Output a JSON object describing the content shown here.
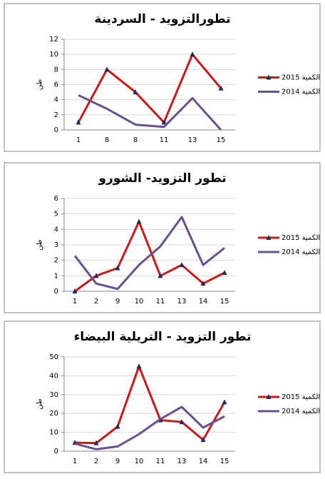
{
  "chart_data": [
    {
      "type": "line",
      "title": "تطورالتزويد - السردينة",
      "y_label": "طن",
      "categories": [
        "1",
        "8",
        "8",
        "11",
        "13",
        "15"
      ],
      "series": [
        {
          "name": "2015 الكمية",
          "color": "#cc1a1a",
          "marker": "triangle",
          "values": [
            1,
            8,
            5,
            1,
            10,
            5.5
          ]
        },
        {
          "name": "2014 الكمية",
          "color": "#6b5090",
          "values": [
            4.6,
            2.8,
            0.7,
            0.4,
            4.2,
            0
          ]
        }
      ],
      "ylim": [
        0,
        12
      ],
      "yticks": [
        0,
        2,
        4,
        6,
        8,
        10,
        12
      ]
    },
    {
      "type": "line",
      "title": "تطور التزويد- الشورو",
      "y_label": "طن",
      "categories": [
        "1",
        "2",
        "9",
        "10",
        "11",
        "13",
        "14",
        "15"
      ],
      "series": [
        {
          "name": "2015 الكمية",
          "color": "#cc1a1a",
          "marker": "triangle",
          "values": [
            0,
            1,
            1.5,
            4.5,
            1,
            1.7,
            0.5,
            1.2
          ]
        },
        {
          "name": "2014 الكمية",
          "color": "#6b5090",
          "values": [
            2.3,
            0.5,
            0.15,
            1.7,
            2.9,
            4.8,
            1.7,
            2.8
          ]
        }
      ],
      "ylim": [
        0,
        6
      ],
      "yticks": [
        0,
        1,
        2,
        3,
        4,
        5,
        6
      ]
    },
    {
      "type": "line",
      "title": "تطور التزويد - التريلية البيضاء",
      "y_label": "طن",
      "categories": [
        "1",
        "2",
        "9",
        "10",
        "11",
        "13",
        "14",
        "15"
      ],
      "series": [
        {
          "name": "2015 الكمية",
          "color": "#cc1a1a",
          "marker": "triangle",
          "values": [
            4.5,
            4.3,
            13,
            45,
            16.5,
            15.5,
            6,
            26
          ]
        },
        {
          "name": "2014 الكمية",
          "color": "#6b5090",
          "values": [
            4,
            1,
            2.5,
            9,
            17,
            23.5,
            12.5,
            18.5
          ]
        }
      ],
      "ylim": [
        0,
        50
      ],
      "yticks": [
        0,
        10,
        20,
        30,
        40,
        50
      ]
    }
  ]
}
